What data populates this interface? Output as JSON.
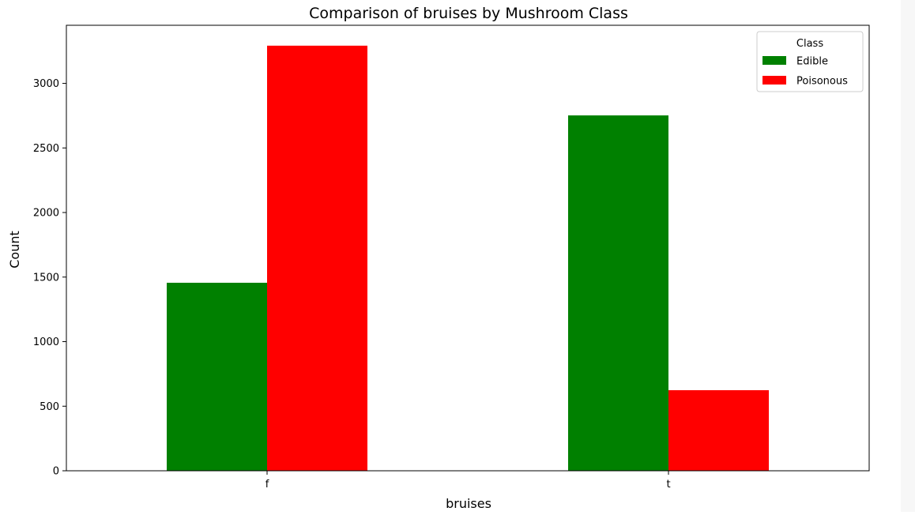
{
  "chart_data": {
    "type": "bar",
    "title": "Comparison of bruises by Mushroom Class",
    "xlabel": "bruises",
    "ylabel": "Count",
    "categories": [
      "f",
      "t"
    ],
    "series": [
      {
        "name": "Edible",
        "color": "#008000",
        "values": [
          1456,
          2752
        ]
      },
      {
        "name": "Poisonous",
        "color": "#ff0000",
        "values": [
          3292,
          624
        ]
      }
    ],
    "ylim": [
      0,
      3450
    ],
    "yticks": [
      0,
      500,
      1000,
      1500,
      2000,
      2500,
      3000
    ],
    "yticks_labels": [
      "0",
      "500",
      "1000",
      "1500",
      "2000",
      "2500",
      "3000"
    ],
    "grid": false,
    "legend": {
      "title": "Class",
      "placement": "top-right"
    }
  }
}
